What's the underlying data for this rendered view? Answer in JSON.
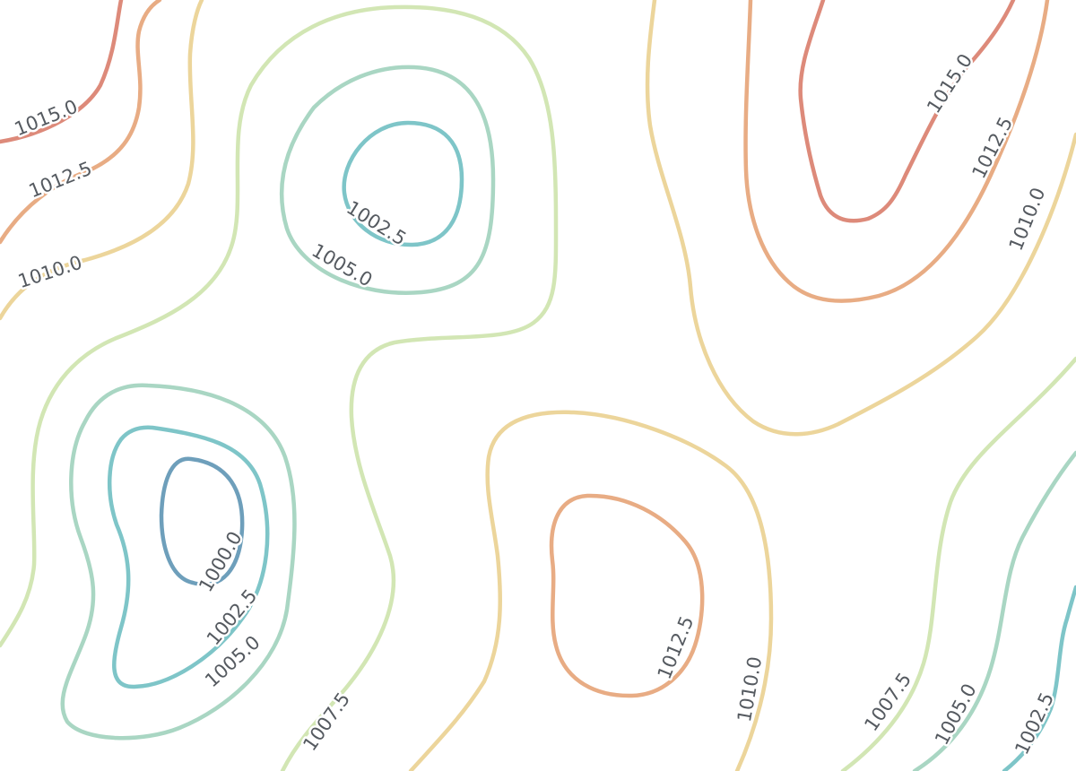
{
  "levels": [
    {
      "value": "1000.0",
      "color": "#6e9fbb"
    },
    {
      "value": "1002.5",
      "color": "#7ec5c8"
    },
    {
      "value": "1005.0",
      "color": "#a9d6c3"
    },
    {
      "value": "1007.5",
      "color": "#d2e6b4"
    },
    {
      "value": "1010.0",
      "color": "#ecd59b"
    },
    {
      "value": "1012.5",
      "color": "#e8ac84"
    },
    {
      "value": "1015.0",
      "color": "#dd8a7a"
    }
  ],
  "labels": {
    "l1015_nw": "1015.0",
    "l1012_nw": "1012.5",
    "l1010_nw": "1010.0",
    "l1002_top": "1002.5",
    "l1005_top": "1005.0",
    "l1000_sw": "1000.0",
    "l1002_sw": "1002.5",
    "l1005_sw": "1005.0",
    "l1007_s": "1007.5",
    "l1012_sc": "1012.5",
    "l1010_sc": "1010.0",
    "l1007_se": "1007.5",
    "l1005_se": "1005.0",
    "l1002_se": "1002.5",
    "l1015_ne": "1015.0",
    "l1012_ne": "1012.5",
    "l1010_ne": "1010.0"
  }
}
